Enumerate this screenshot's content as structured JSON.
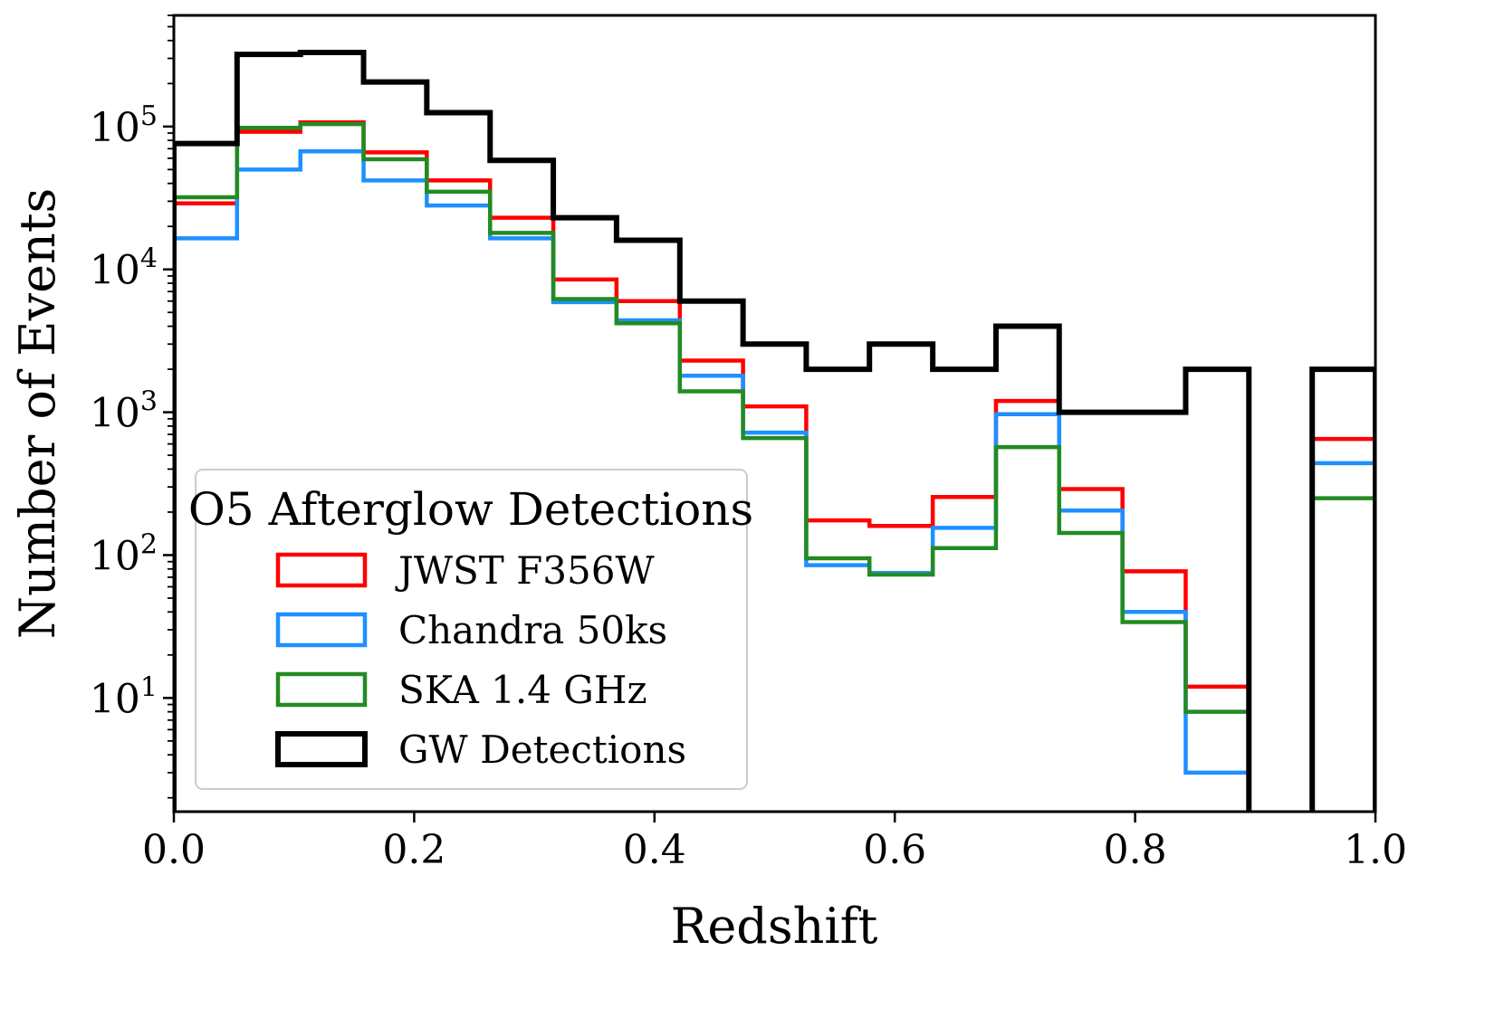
{
  "chart_data": {
    "type": "histogram",
    "title": "",
    "xlabel": "Redshift",
    "ylabel": "Number of Events",
    "xlim": [
      0.0,
      1.0
    ],
    "ylim": [
      1.6,
      600000
    ],
    "yscale": "log",
    "grid": false,
    "bin_edges": [
      0.0,
      0.0526,
      0.1053,
      0.1579,
      0.2105,
      0.2632,
      0.3158,
      0.3684,
      0.4211,
      0.4737,
      0.5263,
      0.5789,
      0.6316,
      0.6842,
      0.7368,
      0.7895,
      0.8421,
      0.8947,
      0.9474,
      1.0
    ],
    "x_ticks": [
      0.0,
      0.2,
      0.4,
      0.6,
      0.8,
      1.0
    ],
    "x_tick_labels": [
      "0.0",
      "0.2",
      "0.4",
      "0.6",
      "0.8",
      "1.0"
    ],
    "y_ticks": [
      {
        "value": 10,
        "base": "10",
        "exp": "1"
      },
      {
        "value": 100,
        "base": "10",
        "exp": "2"
      },
      {
        "value": 1000,
        "base": "10",
        "exp": "3"
      },
      {
        "value": 10000,
        "base": "10",
        "exp": "4"
      },
      {
        "value": 100000,
        "base": "10",
        "exp": "5"
      }
    ],
    "legend": {
      "title": "O5 Afterglow Detections",
      "placement": "lower-left"
    },
    "series": [
      {
        "name": "JWST F356W",
        "color": "#ff0000",
        "values": [
          29000,
          92000,
          107000,
          66000,
          42000,
          23000,
          8500,
          6000,
          2300,
          1100,
          175,
          160,
          255,
          1200,
          290,
          77,
          12,
          0,
          650
        ]
      },
      {
        "name": "Chandra 50ks",
        "color": "#1e90ff",
        "values": [
          16500,
          50000,
          67000,
          42000,
          28000,
          16500,
          5900,
          4400,
          1800,
          720,
          85,
          75,
          155,
          970,
          205,
          40,
          3,
          0,
          440
        ]
      },
      {
        "name": "SKA 1.4 GHz",
        "color": "#228b22",
        "values": [
          32000,
          98000,
          104000,
          59000,
          35000,
          18000,
          6200,
          4200,
          1400,
          660,
          95,
          73,
          112,
          570,
          143,
          34,
          8,
          0,
          250
        ]
      },
      {
        "name": "GW Detections",
        "color": "#000000",
        "values": [
          76000,
          320000,
          330000,
          205000,
          125000,
          58000,
          23000,
          16000,
          6000,
          3000,
          2000,
          3000,
          2000,
          4000,
          1000,
          1000,
          2000,
          0,
          2000
        ]
      }
    ]
  }
}
